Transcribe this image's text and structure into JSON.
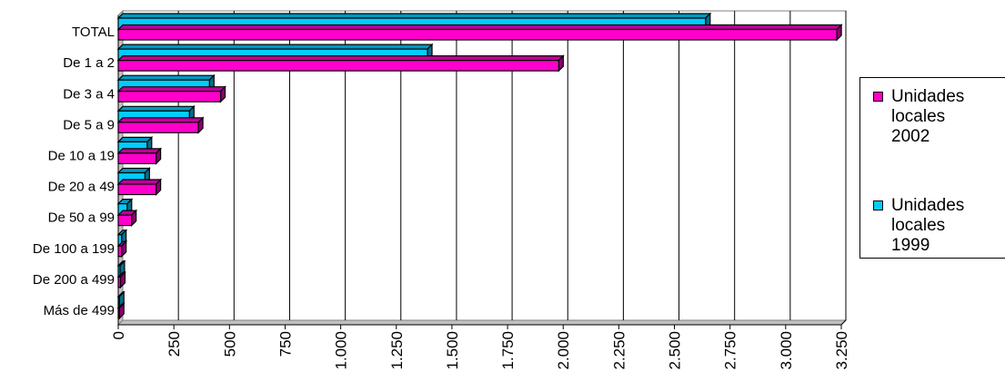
{
  "chart_data": {
    "type": "bar",
    "orientation": "horizontal",
    "categories": [
      "TOTAL",
      "De 1 a 2",
      "De 3 a 4",
      "De 5 a 9",
      "De 10 a 19",
      "De 20 a 49",
      "De 50 a 99",
      "De 100 a 199",
      "De 200 a 499",
      "Más de 499"
    ],
    "series": [
      {
        "name": "Unidades locales 2002",
        "color": "#ff00cc",
        "values": [
          3230,
          1980,
          460,
          360,
          170,
          170,
          60,
          15,
          10,
          5
        ]
      },
      {
        "name": "Unidades locales 1999",
        "color": "#00ccff",
        "values": [
          2640,
          1390,
          410,
          320,
          130,
          120,
          40,
          15,
          8,
          5
        ]
      }
    ],
    "x_ticks": [
      "0",
      "250",
      "500",
      "750",
      "1.000",
      "1.250",
      "1.500",
      "1.750",
      "2.000",
      "2.250",
      "2.500",
      "2.750",
      "3.000",
      "3.250"
    ],
    "xlim": [
      0,
      3250
    ],
    "grid": true,
    "legend_position": "right"
  },
  "legend": [
    {
      "label": "Unidades\nlocales 2002",
      "color": "#ff00cc"
    },
    {
      "label": "Unidades\nlocales 1999",
      "color": "#00ccff"
    }
  ]
}
